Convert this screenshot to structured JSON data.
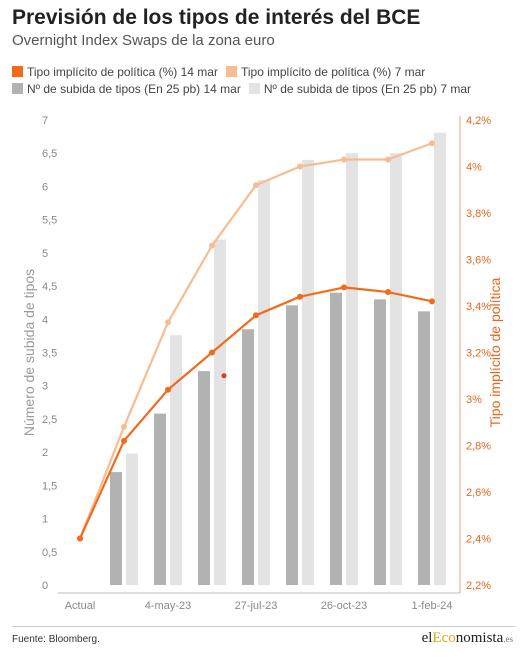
{
  "header": {
    "title": "Previsión de los tipos de interés del BCE",
    "subtitle": "Overnight Index Swaps de la zona euro"
  },
  "legend": {
    "items": [
      {
        "label": "Tipo implícito de política (%) 14 mar",
        "color": "#f26b1d"
      },
      {
        "label": "Tipo implícito de política (%) 7 mar",
        "color": "#f7bc8f"
      },
      {
        "label": "Nº de subida de tipos (En 25 pb) 14 mar",
        "color": "#b2b2b2"
      },
      {
        "label": "Nº de subida de tipos (En 25 pb) 7 mar",
        "color": "#e3e3e3"
      }
    ]
  },
  "chart_data": {
    "type": "bar",
    "categories": [
      "Actual",
      "",
      "4-may-23",
      "",
      "27-jul-23",
      "",
      "26-oct-23",
      "",
      "1-feb-24"
    ],
    "series": [
      {
        "name": "Nº de subida de tipos (En 25 pb) 14 mar",
        "kind": "bar",
        "axis": "left",
        "color": "#b2b2b2",
        "values": [
          null,
          1.7,
          2.58,
          3.22,
          3.85,
          4.21,
          4.4,
          4.3,
          4.12
        ]
      },
      {
        "name": "Nº de subida de tipos (En 25 pb) 7 mar",
        "kind": "bar",
        "axis": "left",
        "color": "#e3e3e3",
        "values": [
          null,
          1.98,
          3.76,
          5.2,
          6.1,
          6.4,
          6.5,
          6.5,
          6.81
        ]
      },
      {
        "name": "Tipo implícito de política (%) 14 mar",
        "kind": "line",
        "axis": "right",
        "color": "#f26b1d",
        "values": [
          2.4,
          2.82,
          3.04,
          3.2,
          3.36,
          3.44,
          3.48,
          3.46,
          3.42
        ]
      },
      {
        "name": "Tipo implícito de política (%) 7 mar",
        "kind": "line",
        "axis": "right",
        "color": "#f7bc8f",
        "values": [
          2.4,
          2.88,
          3.33,
          3.66,
          3.92,
          4.0,
          4.03,
          4.03,
          4.1
        ]
      }
    ],
    "ylabel_left": "Número de subida de tipos",
    "ylabel_right": "Tipo implícito de política",
    "yticks_left": [
      "0",
      "0,5",
      "1",
      "1,5",
      "2",
      "2,5",
      "3",
      "3,5",
      "4",
      "4,5",
      "5",
      "5,5",
      "6",
      "6,5",
      "7"
    ],
    "ylim_left": [
      0,
      7
    ],
    "yticks_right": [
      "2,2%",
      "2,4%",
      "2,6%",
      "2,8%",
      "3%",
      "3,2%",
      "3,4%",
      "3,6%",
      "3,8%",
      "4%",
      "4,2%"
    ],
    "ylim_right": [
      2.2,
      4.2
    ],
    "annotation_point": {
      "category_index": 3,
      "value": 3.1,
      "axis": "right",
      "color": "#e23a1a"
    },
    "grid": false,
    "legend_position": "top"
  },
  "footer": {
    "source": "Fuente: Bloomberg.",
    "brand_part1": "el",
    "brand_part2": "Eco",
    "brand_part3": "nomista",
    "brand_suffix": ".es"
  }
}
